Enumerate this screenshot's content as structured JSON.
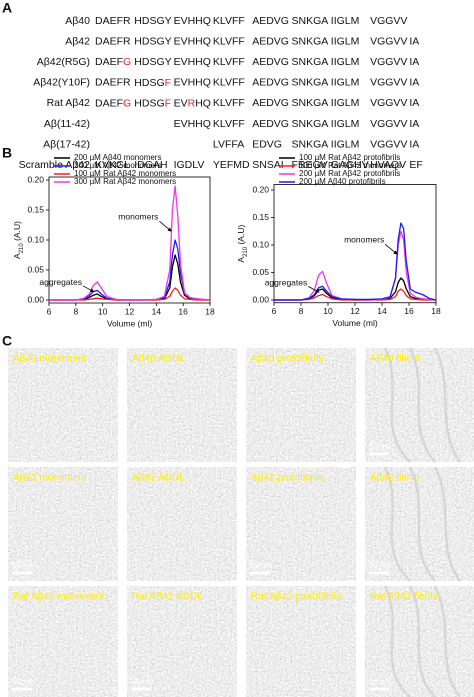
{
  "panel_labels": [
    "A",
    "B",
    "C"
  ],
  "sequences": {
    "highlight_color": "#e8232a",
    "rows": [
      {
        "label": "Aβ40",
        "blocks": [
          "DAEFR",
          "HDSGY",
          "EVHHQ",
          "KLVFF",
          "AEDVG",
          "SNKGA",
          "IIGLM",
          "VGGVV",
          null
        ]
      },
      {
        "label": "Aβ42",
        "blocks": [
          "DAEFR",
          "HDSGY",
          "EVHHQ",
          "KLVFF",
          "AEDVG",
          "SNKGA",
          "IIGLM",
          "VGGVV",
          "IA"
        ]
      },
      {
        "label": "Aβ42(R5G)",
        "blocks": [
          [
            {
              "text": "DAEF"
            },
            {
              "text": "G",
              "highlight": true
            }
          ],
          "HDSGY",
          "EVHHQ",
          "KLVFF",
          "AEDVG",
          "SNKGA",
          "IIGLM",
          "VGGVV",
          "IA"
        ]
      },
      {
        "label": "Aβ42(Y10F)",
        "blocks": [
          "DAEFR",
          [
            {
              "text": "HDSG"
            },
            {
              "text": "F",
              "highlight": true
            }
          ],
          "EVHHQ",
          "KLVFF",
          "AEDVG",
          "SNKGA",
          "IIGLM",
          "VGGVV",
          "IA"
        ]
      },
      {
        "label": "Rat Aβ42",
        "blocks": [
          [
            {
              "text": "DAEF"
            },
            {
              "text": "G",
              "highlight": true
            }
          ],
          [
            {
              "text": "HDSG"
            },
            {
              "text": "F",
              "highlight": true
            }
          ],
          [
            {
              "text": "EV"
            },
            {
              "text": "R",
              "highlight": true
            },
            {
              "text": "HQ"
            }
          ],
          "KLVFF",
          "AEDVG",
          "SNKGA",
          "IIGLM",
          "VGGVV",
          "IA"
        ]
      },
      {
        "label": "Aβ(11-42)",
        "blocks": [
          null,
          null,
          "EVHHQ",
          "KLVFF",
          "AEDVG",
          "SNKGA",
          "IIGLM",
          "VGGVV",
          "IA"
        ]
      },
      {
        "label": "Aβ(17-42)",
        "blocks": [
          null,
          null,
          null,
          "LVFFA",
          "EDVG",
          "SNKGA",
          "IIGLM",
          "VGGVV",
          "IA"
        ]
      },
      {
        "label": "Scramble Aβ42",
        "blocks": [
          "KVKGL",
          "IDGAH",
          "IGDLV",
          "YEFMD",
          "SNSAI",
          "FREGV",
          "GAGHV",
          "HVAQV",
          "EF"
        ]
      }
    ]
  },
  "chart_data": [
    {
      "type": "line",
      "xlabel": "Volume (ml)",
      "ylabel": {
        "text": "A",
        "subscript": "210",
        "suffix": " (A.U)"
      },
      "legend": "upper left",
      "annotations": [
        "aggregates",
        "monomers"
      ],
      "xlim": [
        6,
        18
      ],
      "xticks": [
        6,
        8,
        10,
        12,
        14,
        16,
        18
      ],
      "ylim": [
        -0.005,
        0.205
      ],
      "yticks": [
        {
          "value": 0,
          "label": "0.00"
        },
        0.05,
        {
          "value": 0.1,
          "label": "0.10"
        },
        0.15,
        {
          "value": 0.2,
          "label": "0.20"
        }
      ],
      "x": [
        6,
        7,
        8,
        8.6,
        9,
        9.3,
        9.6,
        9.9,
        10.3,
        11,
        12,
        13,
        14,
        14.6,
        15,
        15.2,
        15.4,
        15.6,
        15.8,
        16.1,
        16.5,
        17,
        17.5,
        18
      ],
      "series": [
        {
          "name": "200 µM Aβ40 monomers",
          "color": "#000000",
          "values": [
            0,
            0,
            0,
            0.001,
            0.004,
            0.008,
            0.01,
            0.006,
            0.002,
            0,
            0,
            0,
            0,
            0.002,
            0.02,
            0.055,
            0.075,
            0.06,
            0.03,
            0.008,
            0.002,
            0.001,
            0,
            0
          ]
        },
        {
          "name": "200 µM Aβ42 monomers",
          "color": "#1c1cf0",
          "values": [
            0,
            0,
            0,
            0.002,
            0.007,
            0.014,
            0.016,
            0.01,
            0.003,
            0,
            0,
            0,
            0.001,
            0.004,
            0.03,
            0.075,
            0.1,
            0.085,
            0.045,
            0.012,
            0.004,
            0.002,
            0.001,
            0
          ]
        },
        {
          "name": "100 µM Rat Aβ42 monomers",
          "color": "#f02020",
          "values": [
            0,
            0,
            0,
            0,
            0.001,
            0.002,
            0.003,
            0.002,
            0.001,
            0,
            0,
            0,
            0,
            0.001,
            0.006,
            0.015,
            0.02,
            0.016,
            0.008,
            0.002,
            0.001,
            0,
            0,
            0
          ]
        },
        {
          "name": "300 µM Rat Aβ42 monomers",
          "color": "#f035f0",
          "values": [
            0,
            0,
            0,
            0.003,
            0.01,
            0.024,
            0.03,
            0.02,
            0.006,
            0.001,
            0,
            0,
            0.001,
            0.006,
            0.05,
            0.15,
            0.19,
            0.14,
            0.06,
            0.012,
            0.004,
            0.002,
            0.001,
            0
          ]
        }
      ]
    },
    {
      "type": "line",
      "xlabel": "Volume (ml)",
      "ylabel": {
        "text": "A",
        "subscript": "210",
        "suffix": " (A.U)"
      },
      "legend": "upper left",
      "annotations": [
        "aggregates",
        "monomers"
      ],
      "xlim": [
        6,
        18
      ],
      "xticks": [
        6,
        8,
        10,
        12,
        14,
        16,
        18
      ],
      "ylim": [
        -0.005,
        0.21
      ],
      "yticks": [
        {
          "value": 0,
          "label": "0.00"
        },
        0.05,
        {
          "value": 0.1,
          "label": "0.10"
        },
        0.15,
        {
          "value": 0.2,
          "label": "0.20"
        }
      ],
      "x": [
        6,
        7,
        8,
        8.6,
        9,
        9.3,
        9.6,
        9.9,
        10.3,
        11,
        12,
        13,
        14,
        14.6,
        15,
        15.2,
        15.4,
        15.6,
        15.8,
        16.1,
        16.5,
        17,
        17.5,
        18
      ],
      "series": [
        {
          "name": "100 µM Rat Aβ42 protofibrils",
          "color": "#000000",
          "values": [
            0,
            0,
            0,
            0.002,
            0.008,
            0.018,
            0.02,
            0.012,
            0.004,
            0.001,
            0,
            0,
            0.001,
            0.003,
            0.015,
            0.032,
            0.04,
            0.035,
            0.02,
            0.006,
            0.003,
            0.002,
            0.001,
            0
          ]
        },
        {
          "name": "100 µM Rat Aβ42 monomers",
          "color": "#f02020",
          "values": [
            0,
            0,
            0,
            0.001,
            0.004,
            0.008,
            0.01,
            0.006,
            0.002,
            0,
            0,
            0,
            0,
            0.001,
            0.006,
            0.016,
            0.02,
            0.016,
            0.008,
            0.002,
            0.001,
            0,
            0,
            0
          ]
        },
        {
          "name": "200 µM Rat Aβ42 protofibrils",
          "color": "#f035f0",
          "values": [
            0,
            0,
            0,
            0.004,
            0.018,
            0.045,
            0.052,
            0.03,
            0.008,
            0.002,
            0.001,
            0,
            0.001,
            0.005,
            0.04,
            0.1,
            0.125,
            0.11,
            0.05,
            0.012,
            0.005,
            0.002,
            0.001,
            0
          ]
        },
        {
          "name": "200 µM Aβ40 protofibrils",
          "color": "#1c1cf0",
          "values": [
            0,
            0,
            0,
            0.003,
            0.01,
            0.022,
            0.025,
            0.016,
            0.006,
            0.002,
            0.001,
            0.001,
            0.002,
            0.006,
            0.04,
            0.11,
            0.14,
            0.13,
            0.07,
            0.02,
            0.014,
            0.01,
            0.003,
            0
          ]
        }
      ]
    }
  ],
  "micrographs": [
    {
      "label": "Aβ40 monomers"
    },
    {
      "label": "Aβ40 ADDL"
    },
    {
      "label": "Aβ40 protofibrils"
    },
    {
      "label": "Aβ40 fibrils",
      "scale_bar": "50 nm"
    },
    {
      "label": "Aβ42 monomers",
      "scale_bar": "50 nm"
    },
    {
      "label": "Aβ42 ADDL"
    },
    {
      "label": "Aβ42 protofibrils",
      "scale_bar": "50 nm"
    },
    {
      "label": "Aβ42 fibrils",
      "scale_bar": "50 nm"
    },
    {
      "label": "Rat Aβ42 monomers",
      "scale_bar": "50 nm"
    },
    {
      "label": "Rat Aβ42 ADDL",
      "scale_bar": "50 nm"
    },
    {
      "label": "Rat Aβ42 protofibrils"
    },
    {
      "label": "Rat Aβ42 fibrils",
      "scale_bar": "50 nm"
    }
  ]
}
